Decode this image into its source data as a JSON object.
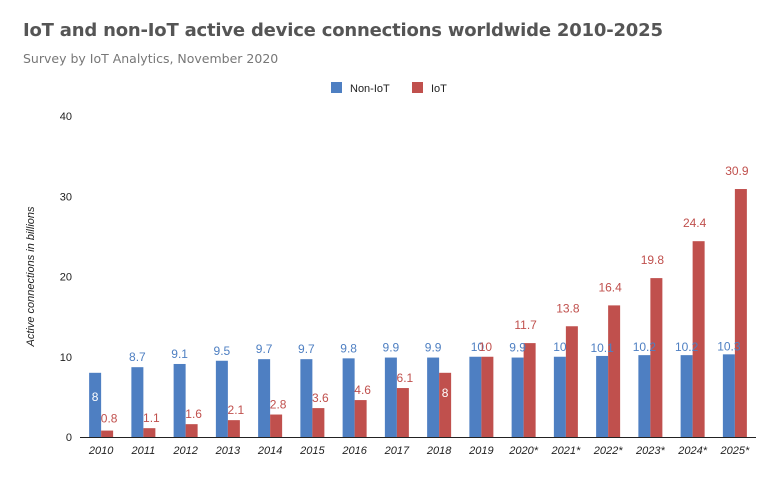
{
  "chart_data": {
    "type": "bar",
    "title": "IoT and non-IoT active device connections worldwide 2010-2025",
    "subtitle": "Survey by IoT Analytics, November 2020",
    "ylabel": "Active connections in billions",
    "xlabel": "",
    "ylim": [
      0,
      40
    ],
    "yticks": [
      0,
      10,
      20,
      30,
      40
    ],
    "grid": false,
    "legend_position": "top-center",
    "categories": [
      "2010",
      "2011",
      "2012",
      "2013",
      "2014",
      "2015",
      "2016",
      "2017",
      "2018",
      "2019",
      "2020*",
      "2021*",
      "2022*",
      "2023*",
      "2024*",
      "2025*"
    ],
    "series": [
      {
        "name": "Non-IoT",
        "color": "#4e7fc2",
        "values": [
          8,
          8.7,
          9.1,
          9.5,
          9.7,
          9.7,
          9.8,
          9.9,
          9.9,
          10,
          9.9,
          10,
          10.1,
          10.2,
          10.2,
          10.3
        ]
      },
      {
        "name": "IoT",
        "color": "#c0504d",
        "values": [
          0.8,
          1.1,
          1.6,
          2.1,
          2.8,
          3.6,
          4.6,
          6.1,
          8,
          10,
          11.7,
          13.8,
          16.4,
          19.8,
          24.4,
          30.9
        ]
      }
    ]
  }
}
